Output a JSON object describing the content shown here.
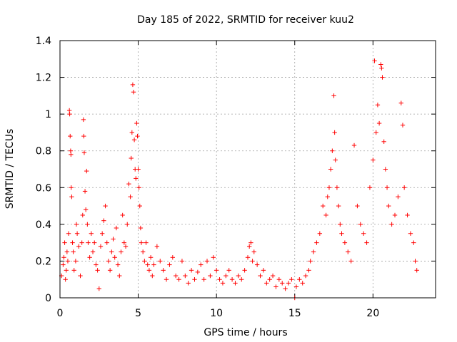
{
  "chart_data": {
    "type": "scatter",
    "title": "Day 185 of 2022, SRMTID for receiver kuu2",
    "xlabel": "GPS time / hours",
    "ylabel": "SRMTID / TECUs",
    "xlim": [
      0,
      24
    ],
    "ylim": [
      0,
      1.4
    ],
    "x_ticks": [
      0,
      5,
      10,
      15,
      20
    ],
    "x_tick_labels": [
      "0",
      "5",
      "10",
      "15",
      "20"
    ],
    "y_ticks": [
      0,
      0.2,
      0.4,
      0.6,
      0.8,
      1.0,
      1.2,
      1.4
    ],
    "y_tick_labels": [
      "0",
      "0.2",
      "0.4",
      "0.6",
      "0.8",
      "1",
      "1.2",
      "1.4"
    ],
    "grid": true,
    "marker": "+",
    "marker_color": "#ff0000",
    "series": [
      {
        "name": "SRMTID",
        "points": [
          [
            0.1,
            0.12
          ],
          [
            0.2,
            0.18
          ],
          [
            0.25,
            0.22
          ],
          [
            0.3,
            0.3
          ],
          [
            0.35,
            0.1
          ],
          [
            0.4,
            0.15
          ],
          [
            0.45,
            0.25
          ],
          [
            0.5,
            0.2
          ],
          [
            0.55,
            0.35
          ],
          [
            0.6,
            1.02
          ],
          [
            0.62,
            1.0
          ],
          [
            0.65,
            0.88
          ],
          [
            0.68,
            0.8
          ],
          [
            0.7,
            0.78
          ],
          [
            0.72,
            0.6
          ],
          [
            0.75,
            0.55
          ],
          [
            0.8,
            0.3
          ],
          [
            0.85,
            0.25
          ],
          [
            0.9,
            0.15
          ],
          [
            1.0,
            0.2
          ],
          [
            1.05,
            0.4
          ],
          [
            1.1,
            0.35
          ],
          [
            1.2,
            0.28
          ],
          [
            1.3,
            0.12
          ],
          [
            1.4,
            0.3
          ],
          [
            1.45,
            0.45
          ],
          [
            1.5,
            0.97
          ],
          [
            1.52,
            0.88
          ],
          [
            1.55,
            0.79
          ],
          [
            1.6,
            0.58
          ],
          [
            1.65,
            0.48
          ],
          [
            1.7,
            0.69
          ],
          [
            1.75,
            0.4
          ],
          [
            1.8,
            0.3
          ],
          [
            1.9,
            0.22
          ],
          [
            2.0,
            0.35
          ],
          [
            2.1,
            0.25
          ],
          [
            2.2,
            0.3
          ],
          [
            2.3,
            0.18
          ],
          [
            2.4,
            0.15
          ],
          [
            2.5,
            0.05
          ],
          [
            2.6,
            0.28
          ],
          [
            2.7,
            0.35
          ],
          [
            2.8,
            0.42
          ],
          [
            2.9,
            0.5
          ],
          [
            3.0,
            0.3
          ],
          [
            3.1,
            0.2
          ],
          [
            3.2,
            0.15
          ],
          [
            3.3,
            0.25
          ],
          [
            3.4,
            0.32
          ],
          [
            3.5,
            0.22
          ],
          [
            3.6,
            0.38
          ],
          [
            3.7,
            0.18
          ],
          [
            3.8,
            0.12
          ],
          [
            3.9,
            0.25
          ],
          [
            4.0,
            0.45
          ],
          [
            4.1,
            0.3
          ],
          [
            4.2,
            0.28
          ],
          [
            4.3,
            0.4
          ],
          [
            4.4,
            0.62
          ],
          [
            4.5,
            0.55
          ],
          [
            4.55,
            0.76
          ],
          [
            4.6,
            0.9
          ],
          [
            4.65,
            1.16
          ],
          [
            4.7,
            1.12
          ],
          [
            4.75,
            0.86
          ],
          [
            4.8,
            0.7
          ],
          [
            4.85,
            0.65
          ],
          [
            4.9,
            0.95
          ],
          [
            4.95,
            0.88
          ],
          [
            5.0,
            0.7
          ],
          [
            5.05,
            0.6
          ],
          [
            5.1,
            0.5
          ],
          [
            5.15,
            0.38
          ],
          [
            5.2,
            0.3
          ],
          [
            5.3,
            0.25
          ],
          [
            5.4,
            0.2
          ],
          [
            5.5,
            0.3
          ],
          [
            5.6,
            0.18
          ],
          [
            5.7,
            0.15
          ],
          [
            5.8,
            0.22
          ],
          [
            5.9,
            0.12
          ],
          [
            6.0,
            0.18
          ],
          [
            6.2,
            0.28
          ],
          [
            6.4,
            0.2
          ],
          [
            6.6,
            0.15
          ],
          [
            6.8,
            0.1
          ],
          [
            7.0,
            0.18
          ],
          [
            7.2,
            0.22
          ],
          [
            7.4,
            0.12
          ],
          [
            7.6,
            0.1
          ],
          [
            7.8,
            0.2
          ],
          [
            8.0,
            0.12
          ],
          [
            8.2,
            0.08
          ],
          [
            8.4,
            0.15
          ],
          [
            8.6,
            0.1
          ],
          [
            8.8,
            0.14
          ],
          [
            9.0,
            0.18
          ],
          [
            9.2,
            0.1
          ],
          [
            9.4,
            0.2
          ],
          [
            9.6,
            0.12
          ],
          [
            9.8,
            0.22
          ],
          [
            10.0,
            0.15
          ],
          [
            10.2,
            0.1
          ],
          [
            10.4,
            0.08
          ],
          [
            10.6,
            0.12
          ],
          [
            10.8,
            0.15
          ],
          [
            11.0,
            0.1
          ],
          [
            11.2,
            0.08
          ],
          [
            11.4,
            0.12
          ],
          [
            11.6,
            0.1
          ],
          [
            11.8,
            0.15
          ],
          [
            12.0,
            0.22
          ],
          [
            12.1,
            0.28
          ],
          [
            12.2,
            0.3
          ],
          [
            12.3,
            0.2
          ],
          [
            12.4,
            0.25
          ],
          [
            12.6,
            0.18
          ],
          [
            12.8,
            0.12
          ],
          [
            13.0,
            0.15
          ],
          [
            13.2,
            0.08
          ],
          [
            13.4,
            0.1
          ],
          [
            13.6,
            0.12
          ],
          [
            13.8,
            0.06
          ],
          [
            14.0,
            0.1
          ],
          [
            14.2,
            0.08
          ],
          [
            14.4,
            0.05
          ],
          [
            14.6,
            0.08
          ],
          [
            14.8,
            0.1
          ],
          [
            15.0,
            0.0
          ],
          [
            15.1,
            0.06
          ],
          [
            15.3,
            0.1
          ],
          [
            15.5,
            0.08
          ],
          [
            15.7,
            0.12
          ],
          [
            15.9,
            0.15
          ],
          [
            16.0,
            0.2
          ],
          [
            16.2,
            0.25
          ],
          [
            16.4,
            0.3
          ],
          [
            16.6,
            0.35
          ],
          [
            16.8,
            0.5
          ],
          [
            17.0,
            0.45
          ],
          [
            17.1,
            0.55
          ],
          [
            17.2,
            0.6
          ],
          [
            17.3,
            0.7
          ],
          [
            17.4,
            0.8
          ],
          [
            17.5,
            1.1
          ],
          [
            17.55,
            0.9
          ],
          [
            17.6,
            0.75
          ],
          [
            17.7,
            0.6
          ],
          [
            17.8,
            0.5
          ],
          [
            17.9,
            0.4
          ],
          [
            18.0,
            0.35
          ],
          [
            18.2,
            0.3
          ],
          [
            18.4,
            0.25
          ],
          [
            18.6,
            0.2
          ],
          [
            18.8,
            0.83
          ],
          [
            19.0,
            0.5
          ],
          [
            19.2,
            0.4
          ],
          [
            19.4,
            0.35
          ],
          [
            19.6,
            0.3
          ],
          [
            19.8,
            0.6
          ],
          [
            20.0,
            0.75
          ],
          [
            20.1,
            1.29
          ],
          [
            20.2,
            0.9
          ],
          [
            20.3,
            1.05
          ],
          [
            20.4,
            0.95
          ],
          [
            20.5,
            1.27
          ],
          [
            20.55,
            1.25
          ],
          [
            20.6,
            1.2
          ],
          [
            20.7,
            0.85
          ],
          [
            20.8,
            0.7
          ],
          [
            20.9,
            0.6
          ],
          [
            21.0,
            0.5
          ],
          [
            21.2,
            0.4
          ],
          [
            21.4,
            0.45
          ],
          [
            21.6,
            0.55
          ],
          [
            21.8,
            1.06
          ],
          [
            21.9,
            0.94
          ],
          [
            22.0,
            0.6
          ],
          [
            22.2,
            0.45
          ],
          [
            22.4,
            0.35
          ],
          [
            22.6,
            0.3
          ],
          [
            22.7,
            0.2
          ],
          [
            22.8,
            0.15
          ]
        ]
      }
    ]
  }
}
